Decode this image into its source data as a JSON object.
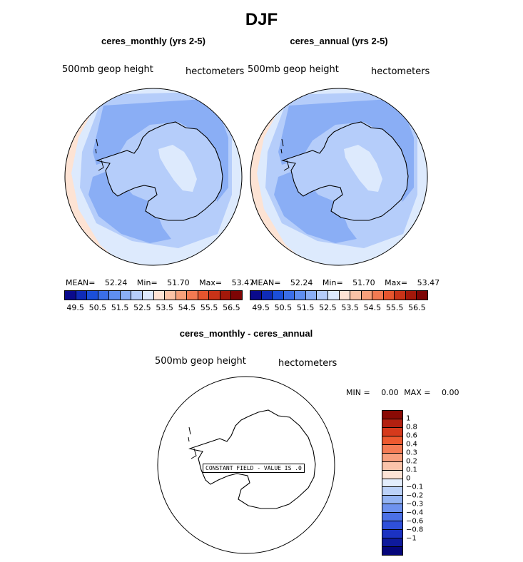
{
  "title": "DJF",
  "panels": [
    {
      "title": "ceres_monthly (yrs 2-5)",
      "variable": "500mb geop height",
      "units": "hectometers",
      "mean_label": "MEAN=",
      "mean_value": "52.24",
      "min_label": "Min=",
      "min_value": "51.70",
      "max_label": "Max=",
      "max_value": "53.47"
    },
    {
      "title": "ceres_annual (yrs 2-5)",
      "variable": "500mb geop height",
      "units": "hectometers",
      "mean_label": "MEAN=",
      "mean_value": "52.24",
      "min_label": "Min=",
      "min_value": "51.70",
      "max_label": "Max=",
      "max_value": "53.47"
    }
  ],
  "colorbar": {
    "colors": [
      "#0a0a8c",
      "#0f2bb8",
      "#1b4fd9",
      "#3a6ee8",
      "#5f8ef0",
      "#8aaef5",
      "#b5cdfa",
      "#ddeafd",
      "#fde3d4",
      "#fbc3a6",
      "#f7a07a",
      "#f27a52",
      "#e5552e",
      "#c83318",
      "#a3180a",
      "#7d0505"
    ],
    "ticks": [
      "49.5",
      "50.5",
      "51.5",
      "52.5",
      "53.5",
      "54.5",
      "55.5",
      "56.5"
    ]
  },
  "diff": {
    "title": "ceres_monthly - ceres_annual",
    "variable": "500mb geop height",
    "units": "hectometers",
    "min_label": "MIN =",
    "min_value": "0.00",
    "max_label": "MAX =",
    "max_value": "0.00",
    "note": "CONSTANT FIELD - VALUE IS .0",
    "colors": [
      "#8a0a05",
      "#b32010",
      "#d63a1c",
      "#ee5a30",
      "#f57c55",
      "#f8a07e",
      "#fbc4aa",
      "#fde4d6",
      "#e4eefc",
      "#bcd2f8",
      "#94b4f3",
      "#6e92ee",
      "#4b70e6",
      "#2f50da",
      "#1b32c2",
      "#0e1a9c",
      "#05067a"
    ],
    "ticks": [
      "1",
      "0.8",
      "0.6",
      "0.4",
      "0.3",
      "0.2",
      "0.1",
      "0",
      "−0.1",
      "−0.2",
      "−0.3",
      "−0.4",
      "−0.6",
      "−0.8",
      "−1"
    ]
  }
}
